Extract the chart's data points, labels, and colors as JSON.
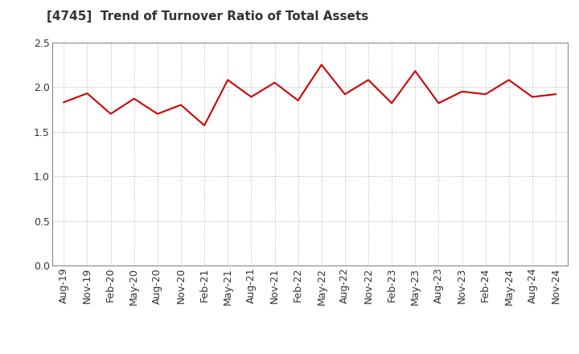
{
  "title": "[4745]  Trend of Turnover Ratio of Total Assets",
  "line_color": "#cc0000",
  "background_color": "#ffffff",
  "grid_color": "#b0b0b0",
  "ylim": [
    0.0,
    2.5
  ],
  "yticks": [
    0.0,
    0.5,
    1.0,
    1.5,
    2.0,
    2.5
  ],
  "ytick_labels": [
    "0.0",
    "0.5",
    "1.0",
    "1.5",
    "2.0",
    "2.5"
  ],
  "xtick_labels": [
    "Aug-19",
    "Nov-19",
    "Feb-20",
    "May-20",
    "Aug-20",
    "Nov-20",
    "Feb-21",
    "May-21",
    "Aug-21",
    "Nov-21",
    "Feb-22",
    "May-22",
    "Aug-22",
    "Nov-22",
    "Feb-23",
    "May-23",
    "Aug-23",
    "Nov-23",
    "Feb-24",
    "May-24",
    "Aug-24",
    "Nov-24"
  ],
  "values": [
    1.83,
    1.93,
    1.7,
    1.87,
    1.7,
    1.8,
    1.57,
    2.08,
    1.89,
    2.05,
    1.85,
    2.25,
    1.92,
    2.08,
    1.82,
    2.18,
    1.82,
    1.95,
    1.92,
    2.08,
    1.89,
    1.92
  ],
  "title_fontsize": 11,
  "tick_fontsize": 9
}
